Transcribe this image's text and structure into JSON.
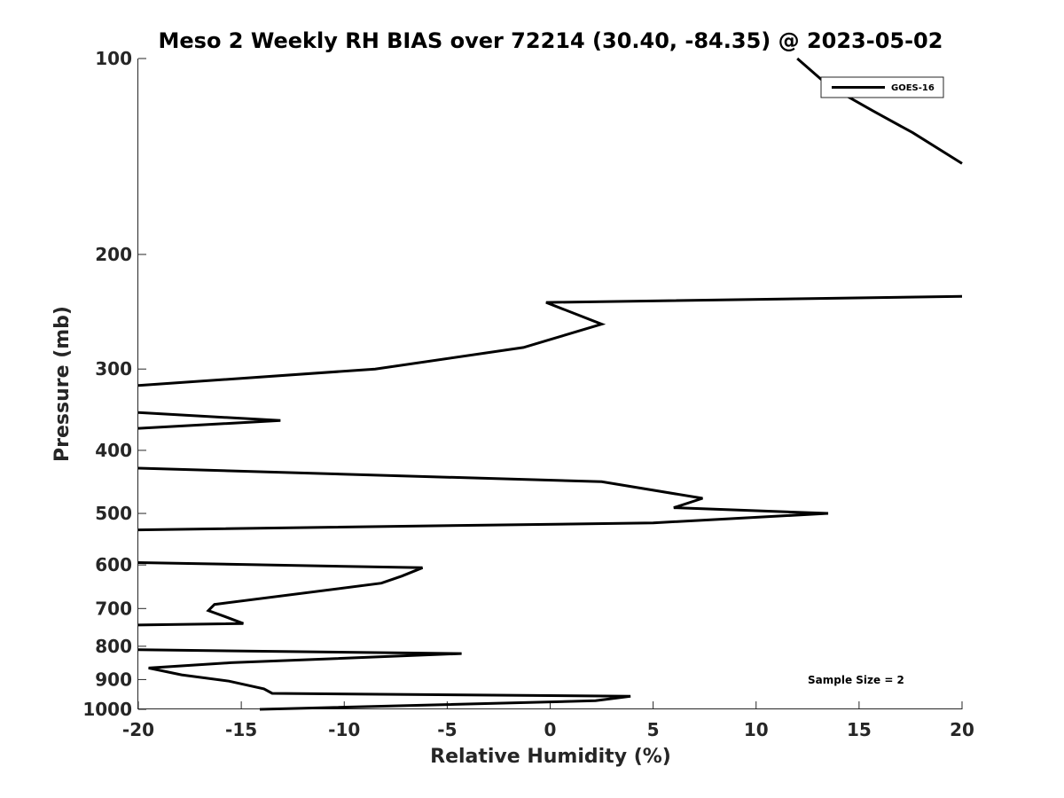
{
  "chart_data": {
    "type": "line",
    "title": "Meso 2 Weekly RH BIAS over 72214 (30.40, -84.35) @ 2023-05-02",
    "xlabel": "Relative Humidity (%)",
    "ylabel": "Pressure (mb)",
    "xlim": [
      -20,
      20
    ],
    "ylim": [
      100,
      1000
    ],
    "y_scale": "log",
    "y_reversed": true,
    "x_ticks": [
      -20,
      -15,
      -10,
      -5,
      0,
      5,
      10,
      15,
      20
    ],
    "x_tick_labels": [
      "-20",
      "-15",
      "-10",
      "-5",
      "0",
      "5",
      "10",
      "15",
      "20"
    ],
    "y_ticks": [
      100,
      200,
      300,
      400,
      500,
      600,
      700,
      800,
      900,
      1000
    ],
    "y_tick_labels": [
      "100",
      "200",
      "300",
      "400",
      "500",
      "600",
      "700",
      "800",
      "900",
      "1000"
    ],
    "grid": false,
    "legend_position": "top-right",
    "annotation": "Sample Size = 2",
    "series": [
      {
        "name": "GOES-16",
        "color": "#000000",
        "points": [
          [
            12,
            100
          ],
          [
            13.5,
            110
          ],
          [
            15.6,
            120
          ],
          [
            17.6,
            130
          ],
          [
            20,
            145
          ],
          [
            null,
            null
          ],
          [
            20,
            232
          ],
          [
            -0.2,
            237
          ],
          [
            2.5,
            256
          ],
          [
            -1.3,
            278
          ],
          [
            -8.5,
            300
          ],
          [
            -20,
            318
          ],
          [
            null,
            null
          ],
          [
            -20,
            350
          ],
          [
            -13.1,
            360
          ],
          [
            -20,
            370
          ],
          [
            null,
            null
          ],
          [
            -20,
            426
          ],
          [
            2.5,
            447
          ],
          [
            7.4,
            474
          ],
          [
            6.0,
            490
          ],
          [
            13.5,
            500
          ],
          [
            5.0,
            517
          ],
          [
            -20,
            530
          ],
          [
            null,
            null
          ],
          [
            -20,
            595
          ],
          [
            -6.2,
            606
          ],
          [
            -7.2,
            624
          ],
          [
            -8.2,
            640
          ],
          [
            -16.3,
            690
          ],
          [
            -16.6,
            705
          ],
          [
            -15.8,
            720
          ],
          [
            -14.9,
            738
          ],
          [
            -20,
            742
          ],
          [
            null,
            null
          ],
          [
            -20,
            810
          ],
          [
            -4.3,
            821
          ],
          [
            -15.5,
            848
          ],
          [
            -19.5,
            864
          ],
          [
            -17.9,
            885
          ],
          [
            -15.6,
            905
          ],
          [
            -13.9,
            930
          ],
          [
            -13.5,
            945
          ],
          [
            3.9,
            955
          ],
          [
            2.2,
            970
          ],
          [
            -14.1,
            1000
          ]
        ]
      }
    ]
  }
}
